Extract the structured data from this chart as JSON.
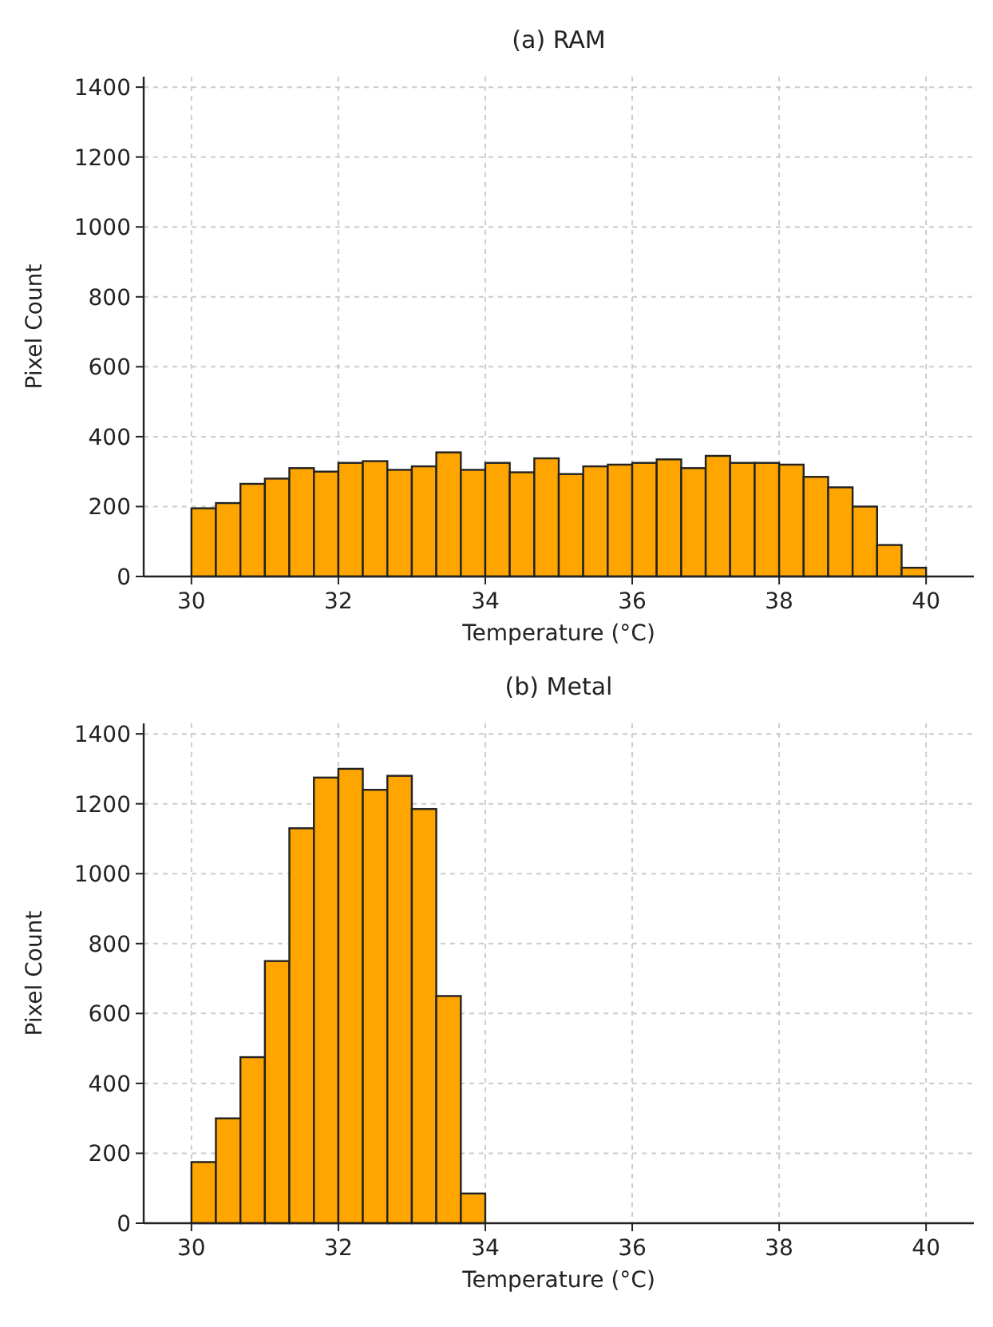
{
  "chart_data": [
    {
      "type": "histogram",
      "title": "(a) RAM",
      "xlabel": "Temperature (°C)",
      "ylabel": "Pixel Count",
      "color": "#ffa500",
      "bins": [
        30,
        30.333,
        30.667,
        31,
        31.333,
        31.667,
        32,
        32.333,
        32.667,
        33,
        33.333,
        33.667,
        34,
        34.333,
        34.667,
        35,
        35.333,
        35.667,
        36,
        36.333,
        36.667,
        37,
        37.333,
        37.667,
        38,
        38.333,
        38.667,
        39,
        39.333,
        39.667,
        40
      ],
      "values": [
        195,
        210,
        265,
        280,
        310,
        300,
        325,
        330,
        305,
        315,
        355,
        305,
        325,
        298,
        338,
        293,
        315,
        320,
        325,
        335,
        310,
        345,
        325,
        325,
        320,
        285,
        255,
        200,
        90,
        25
      ],
      "xlim": [
        29.35,
        40.65
      ],
      "xticks": [
        30,
        32,
        34,
        36,
        38,
        40
      ],
      "ylim": [
        0,
        1430
      ],
      "yticks": [
        0,
        200,
        400,
        600,
        800,
        1000,
        1200,
        1400
      ],
      "grid": true
    },
    {
      "type": "histogram",
      "title": "(b) Metal",
      "xlabel": "Temperature (°C)",
      "ylabel": "Pixel Count",
      "color": "#ffa500",
      "bins": [
        30,
        30.333,
        30.667,
        31,
        31.333,
        31.667,
        32,
        32.333,
        32.667,
        33,
        33.333,
        33.667,
        34
      ],
      "values": [
        175,
        300,
        475,
        750,
        1130,
        1275,
        1300,
        1240,
        1280,
        1185,
        650,
        85
      ],
      "xlim": [
        29.35,
        40.65
      ],
      "xticks": [
        30,
        32,
        34,
        36,
        38,
        40
      ],
      "ylim": [
        0,
        1430
      ],
      "yticks": [
        0,
        200,
        400,
        600,
        800,
        1000,
        1200,
        1400
      ],
      "grid": true
    }
  ]
}
